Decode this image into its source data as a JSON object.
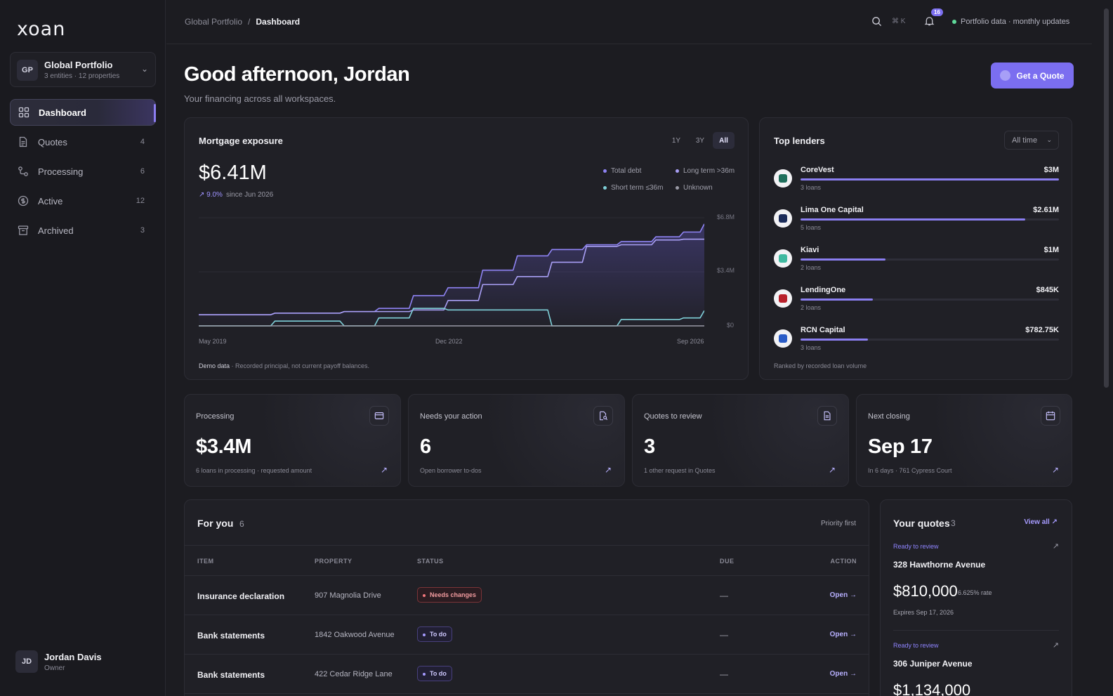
{
  "app": {
    "logo": "xoan"
  },
  "workspace": {
    "initials": "GP",
    "name": "Global Portfolio",
    "sub": "3 entities · 12 properties"
  },
  "nav": [
    {
      "label": "Dashboard",
      "count": ""
    },
    {
      "label": "Quotes",
      "count": "4"
    },
    {
      "label": "Processing",
      "count": "6"
    },
    {
      "label": "Active",
      "count": "12"
    },
    {
      "label": "Archived",
      "count": "3"
    }
  ],
  "user": {
    "initials": "JD",
    "name": "Jordan Davis",
    "role": "Owner"
  },
  "topbar": {
    "breadcrumb_parent": "Global Portfolio",
    "breadcrumb_sep": "/",
    "breadcrumb_current": "Dashboard",
    "shortcut": "⌘ K",
    "notifications": "16",
    "status": "Portfolio data · monthly updates"
  },
  "header": {
    "greeting": "Good afternoon, Jordan",
    "sub": "Your financing across all workspaces.",
    "cta": "Get a Quote"
  },
  "mortgage": {
    "title": "Mortgage exposure",
    "ranges": [
      "1Y",
      "3Y",
      "All"
    ],
    "selected_range": "All",
    "value": "$6.41M",
    "change": "↗ 9.0%",
    "change_since": "since Jun 2026",
    "footer_bold": "Demo data",
    "footer": " · Recorded principal, not current payoff balances."
  },
  "chart_data": {
    "type": "line",
    "title": "Mortgage exposure",
    "xlabel": "",
    "ylabel": "",
    "x_ticks": [
      "May 2019",
      "Dec 2022",
      "Sep 2026"
    ],
    "y_ticks": [
      "$6.8M",
      "$3.4M",
      "$0"
    ],
    "ylim": [
      0,
      6.8
    ],
    "grid": true,
    "legend": [
      "Total debt",
      "Long term >36m",
      "Short term ≤36m",
      "Unknown"
    ],
    "legend_position": "top-right",
    "x": [
      2019.4,
      2020.5,
      2021.5,
      2022.0,
      2022.5,
      2023.0,
      2023.5,
      2024.0,
      2024.5,
      2025.0,
      2025.5,
      2026.0,
      2026.4,
      2026.7
    ],
    "series": [
      {
        "name": "Total debt",
        "color": "#8f84f5",
        "values": [
          0.7,
          0.8,
          0.9,
          1.1,
          1.9,
          2.4,
          3.5,
          4.4,
          4.8,
          5.1,
          5.3,
          5.6,
          5.9,
          6.41
        ]
      },
      {
        "name": "Long term >36m",
        "color": "#a99ff5",
        "values": [
          0.7,
          0.8,
          0.9,
          0.9,
          1.0,
          1.6,
          2.6,
          3.1,
          4.0,
          5.0,
          5.1,
          5.4,
          5.45,
          5.45
        ]
      },
      {
        "name": "Short term ≤36m",
        "color": "#7fd0d8",
        "values": [
          0.0,
          0.3,
          0.0,
          0.5,
          1.1,
          1.0,
          1.0,
          1.0,
          0.0,
          0.0,
          0.4,
          0.4,
          0.5,
          0.96
        ]
      },
      {
        "name": "Unknown",
        "color": "#9a9aa6",
        "values": [
          0.0,
          0.0,
          0.0,
          0.0,
          0.0,
          0.0,
          0.0,
          0.0,
          0.0,
          0.0,
          0.0,
          0.0,
          0.0,
          0.0
        ]
      }
    ]
  },
  "lenders": {
    "title": "Top lenders",
    "filter": "All time",
    "footer": "Ranked by recorded loan volume",
    "items": [
      {
        "name": "CoreVest",
        "amount": "$3M",
        "loans": "3 loans",
        "share": 1.0,
        "color": "#1f6f5c"
      },
      {
        "name": "Lima One Capital",
        "amount": "$2.61M",
        "loans": "5 loans",
        "share": 0.87,
        "color": "#1b2c5a"
      },
      {
        "name": "Kiavi",
        "amount": "$1M",
        "loans": "2 loans",
        "share": 0.33,
        "color": "#3fb9a0"
      },
      {
        "name": "LendingOne",
        "amount": "$845K",
        "loans": "2 loans",
        "share": 0.28,
        "color": "#b8202b"
      },
      {
        "name": "RCN Capital",
        "amount": "$782.75K",
        "loans": "3 loans",
        "share": 0.26,
        "color": "#2a5cc7"
      }
    ]
  },
  "stats": [
    {
      "label": "Processing",
      "value": "$3.4M",
      "sub": "6 loans in processing · requested amount",
      "icon": "wallet-icon"
    },
    {
      "label": "Needs your action",
      "value": "6",
      "sub": "Open borrower to-dos",
      "icon": "file-search-icon"
    },
    {
      "label": "Quotes to review",
      "value": "3",
      "sub": "1 other request in Quotes",
      "icon": "document-icon"
    },
    {
      "label": "Next closing",
      "value": "Sep 17",
      "sub": "In 6 days · 761 Cypress Court",
      "icon": "calendar-icon"
    }
  ],
  "for_you": {
    "title": "For you",
    "count": "6",
    "sort": "Priority first",
    "columns": [
      "ITEM",
      "PROPERTY",
      "STATUS",
      "DUE",
      "ACTION"
    ],
    "rows": [
      {
        "item": "Insurance declaration",
        "property": "907 Magnolia Drive",
        "status": "Needs changes",
        "due": "—",
        "action": "Open →"
      },
      {
        "item": "Bank statements",
        "property": "1842 Oakwood Avenue",
        "status": "To do",
        "due": "—",
        "action": "Open →"
      },
      {
        "item": "Bank statements",
        "property": "422 Cedar Ridge Lane",
        "status": "To do",
        "due": "—",
        "action": "Open →"
      }
    ]
  },
  "your_quotes": {
    "title": "Your quotes",
    "count": "3",
    "view_all": "View all",
    "items": [
      {
        "tag": "Ready to review",
        "address": "328 Hawthorne Avenue",
        "amount": "$810,000",
        "rate": "6.625% rate",
        "expires": "Expires Sep 17, 2026"
      },
      {
        "tag": "Ready to review",
        "address": "306 Juniper Avenue",
        "amount": "$1,134,000",
        "rate": "",
        "expires": ""
      }
    ]
  }
}
